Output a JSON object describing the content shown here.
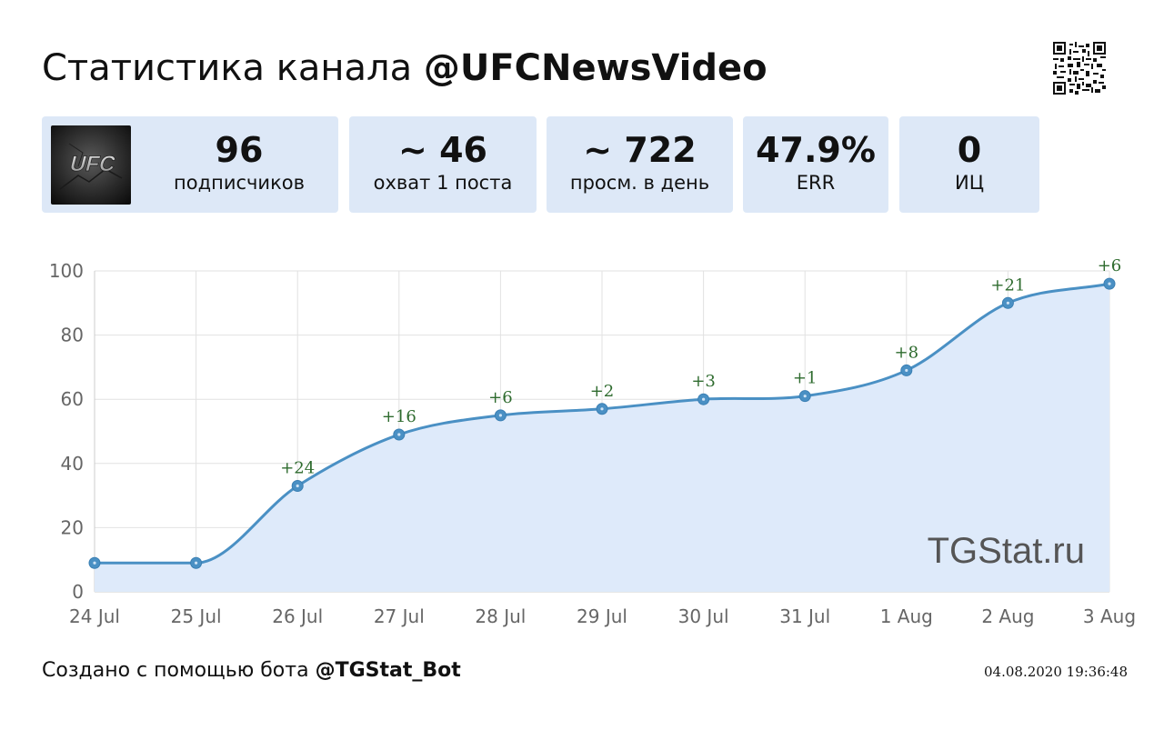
{
  "header": {
    "title_prefix": "Статистика канала",
    "channel": "@UFCNewsVideo"
  },
  "avatar": {
    "text": "UFC"
  },
  "stats": [
    {
      "value": "96",
      "label": "подписчиков"
    },
    {
      "value": "~ 46",
      "label": "охват 1 поста"
    },
    {
      "value": "~ 722",
      "label": "просм. в день"
    },
    {
      "value": "47.9%",
      "label": "ERR"
    },
    {
      "value": "0",
      "label": "ИЦ"
    }
  ],
  "chart_data": {
    "type": "area",
    "categories": [
      "24 Jul",
      "25 Jul",
      "26 Jul",
      "27 Jul",
      "28 Jul",
      "29 Jul",
      "30 Jul",
      "31 Jul",
      "1 Aug",
      "2 Aug",
      "3 Aug"
    ],
    "values": [
      9,
      9,
      33,
      49,
      55,
      57,
      60,
      61,
      69,
      90,
      96
    ],
    "annotations": [
      "",
      "",
      "+24",
      "+16",
      "+6",
      "+2",
      "+3",
      "+1",
      "+8",
      "+21",
      "+6"
    ],
    "yticks": [
      "0",
      "20",
      "40",
      "60",
      "80",
      "100"
    ],
    "ylim": [
      0,
      100
    ],
    "grid": true,
    "watermark": "TGStat.ru",
    "line_color": "#4a90c4",
    "fill_color": "#deeafa",
    "annotation_color": "#2e6b2e"
  },
  "footer": {
    "prefix": "Создано с помощью бота",
    "bot": "@TGStat_Bot",
    "timestamp": "04.08.2020 19:36:48"
  }
}
